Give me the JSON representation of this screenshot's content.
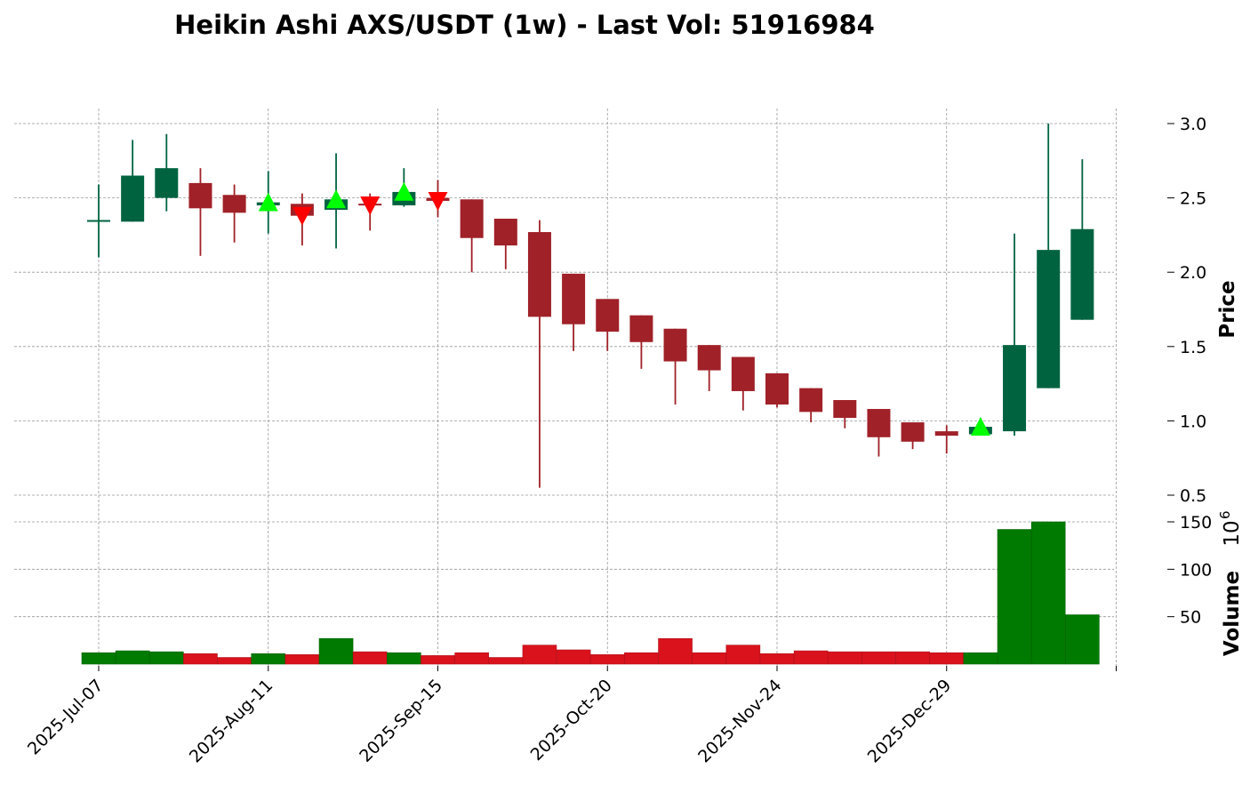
{
  "chart_data": {
    "type": "candlestick",
    "title": "Heikin Ashi AXS/USDT (1w) - Last Vol: 51916984",
    "ylabel": "Price",
    "volume_label": "Volume",
    "volume_multiplier_base": "10",
    "volume_multiplier_exp": "6",
    "price_ylim": [
      0.5,
      3.0
    ],
    "price_yticks": [
      "0.5",
      "1.0",
      "1.5",
      "2.0",
      "2.5",
      "3.0"
    ],
    "volume_yticks": [
      "50",
      "100",
      "150"
    ],
    "volume_ylim_millions": [
      0,
      150
    ],
    "x_tick_labels": [
      "2025-Jul-07",
      "2025-Aug-11",
      "2025-Sep-15",
      "2025-Oct-20",
      "2025-Nov-24",
      "2025-Dec-29"
    ],
    "x_tick_indices": [
      0,
      5,
      10,
      15,
      20,
      25
    ],
    "grid": true,
    "colors": {
      "up_candle": "#006340",
      "down_candle": "#A02128",
      "up_volume": "#007A00",
      "down_volume": "#D9121C",
      "buy_marker": "#00FF00",
      "sell_marker": "#FF0000",
      "grid": "#999999"
    },
    "candles": [
      {
        "date": "2025-Jul-07",
        "open": 2.34,
        "high": 2.59,
        "low": 2.1,
        "close": 2.35
      },
      {
        "date": "2025-Jul-14",
        "open": 2.34,
        "high": 2.89,
        "low": 2.34,
        "close": 2.65
      },
      {
        "date": "2025-Jul-21",
        "open": 2.5,
        "high": 2.93,
        "low": 2.41,
        "close": 2.7
      },
      {
        "date": "2025-Jul-28",
        "open": 2.6,
        "high": 2.7,
        "low": 2.11,
        "close": 2.43
      },
      {
        "date": "2025-Aug-04",
        "open": 2.52,
        "high": 2.59,
        "low": 2.2,
        "close": 2.4
      },
      {
        "date": "2025-Aug-11",
        "open": 2.45,
        "high": 2.68,
        "low": 2.26,
        "close": 2.47
      },
      {
        "date": "2025-Aug-18",
        "open": 2.46,
        "high": 2.53,
        "low": 2.18,
        "close": 2.38
      },
      {
        "date": "2025-Aug-25",
        "open": 2.42,
        "high": 2.8,
        "low": 2.16,
        "close": 2.49
      },
      {
        "date": "2025-Sep-01",
        "open": 2.46,
        "high": 2.53,
        "low": 2.28,
        "close": 2.45
      },
      {
        "date": "2025-Sep-08",
        "open": 2.45,
        "high": 2.7,
        "low": 2.44,
        "close": 2.54
      },
      {
        "date": "2025-Sep-15",
        "open": 2.5,
        "high": 2.62,
        "low": 2.37,
        "close": 2.48
      },
      {
        "date": "2025-Sep-22",
        "open": 2.49,
        "high": 2.49,
        "low": 2.0,
        "close": 2.23
      },
      {
        "date": "2025-Sep-29",
        "open": 2.36,
        "high": 2.36,
        "low": 2.02,
        "close": 2.18
      },
      {
        "date": "2025-Oct-06",
        "open": 2.27,
        "high": 2.35,
        "low": 0.55,
        "close": 1.7
      },
      {
        "date": "2025-Oct-13",
        "open": 1.99,
        "high": 1.99,
        "low": 1.47,
        "close": 1.65
      },
      {
        "date": "2025-Oct-20",
        "open": 1.82,
        "high": 1.82,
        "low": 1.47,
        "close": 1.6
      },
      {
        "date": "2025-Oct-27",
        "open": 1.71,
        "high": 1.71,
        "low": 1.35,
        "close": 1.53
      },
      {
        "date": "2025-Nov-03",
        "open": 1.62,
        "high": 1.62,
        "low": 1.11,
        "close": 1.4
      },
      {
        "date": "2025-Nov-10",
        "open": 1.51,
        "high": 1.51,
        "low": 1.2,
        "close": 1.34
      },
      {
        "date": "2025-Nov-17",
        "open": 1.43,
        "high": 1.43,
        "low": 1.07,
        "close": 1.2
      },
      {
        "date": "2025-Nov-24",
        "open": 1.32,
        "high": 1.32,
        "low": 1.09,
        "close": 1.11
      },
      {
        "date": "2025-Dec-01",
        "open": 1.22,
        "high": 1.22,
        "low": 0.99,
        "close": 1.06
      },
      {
        "date": "2025-Dec-08",
        "open": 1.14,
        "high": 1.14,
        "low": 0.95,
        "close": 1.02
      },
      {
        "date": "2025-Dec-15",
        "open": 1.08,
        "high": 1.08,
        "low": 0.76,
        "close": 0.89
      },
      {
        "date": "2025-Dec-22",
        "open": 0.99,
        "high": 0.99,
        "low": 0.81,
        "close": 0.86
      },
      {
        "date": "2025-Dec-29",
        "open": 0.93,
        "high": 0.97,
        "low": 0.78,
        "close": 0.9
      },
      {
        "date": "2026-Jan-05",
        "open": 0.91,
        "high": 1.02,
        "low": 0.91,
        "close": 0.96
      },
      {
        "date": "2026-Jan-12",
        "open": 0.93,
        "high": 2.26,
        "low": 0.9,
        "close": 1.51
      },
      {
        "date": "2026-Jan-19",
        "open": 1.22,
        "high": 3.0,
        "low": 1.22,
        "close": 2.15
      },
      {
        "date": "2026-Jan-26",
        "open": 1.68,
        "high": 2.76,
        "low": 1.68,
        "close": 2.29
      }
    ],
    "volume_millions": [
      12,
      14,
      13,
      11,
      7,
      11,
      10,
      27,
      13,
      12,
      9,
      12,
      7,
      20,
      15,
      10,
      12,
      27,
      12,
      20,
      11,
      14,
      13,
      13,
      13,
      12,
      12,
      142,
      150,
      52
    ],
    "markers": [
      {
        "date": "2025-Aug-11",
        "type": "buy",
        "price": 2.47
      },
      {
        "date": "2025-Aug-18",
        "type": "sell",
        "price": 2.38
      },
      {
        "date": "2025-Aug-25",
        "type": "buy",
        "price": 2.49
      },
      {
        "date": "2025-Sep-01",
        "type": "sell",
        "price": 2.45
      },
      {
        "date": "2025-Sep-08",
        "type": "buy",
        "price": 2.54
      },
      {
        "date": "2025-Sep-15",
        "type": "sell",
        "price": 2.48
      },
      {
        "date": "2026-Jan-05",
        "type": "buy",
        "price": 0.96
      }
    ]
  }
}
